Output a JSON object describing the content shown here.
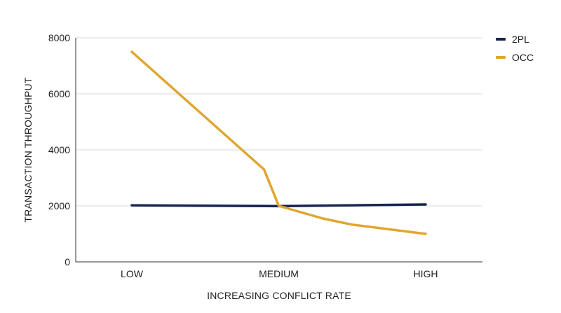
{
  "chart_data": {
    "type": "line",
    "categories": [
      "LOW",
      "MEDIUM",
      "HIGH"
    ],
    "x": [
      0,
      0.45,
      0.5,
      0.65,
      0.75,
      1.0
    ],
    "series": [
      {
        "name": "2PL",
        "color": "#16244f",
        "x": [
          0,
          0.5,
          1.0
        ],
        "values": [
          2020,
          1990,
          2050
        ]
      },
      {
        "name": "OCC",
        "color": "#e0a630",
        "x": [
          0,
          0.45,
          0.5,
          0.65,
          0.75,
          1.0
        ],
        "values": [
          7500,
          3300,
          2000,
          1550,
          1330,
          1000
        ]
      }
    ],
    "xlabel": "INCREASING CONFLICT RATE",
    "ylabel": "TRANSACTION THROUGHPUT",
    "ylim": [
      0,
      8000
    ],
    "yticks": [
      0,
      2000,
      4000,
      6000,
      8000
    ],
    "grid": true,
    "legend_position": "top-right"
  }
}
